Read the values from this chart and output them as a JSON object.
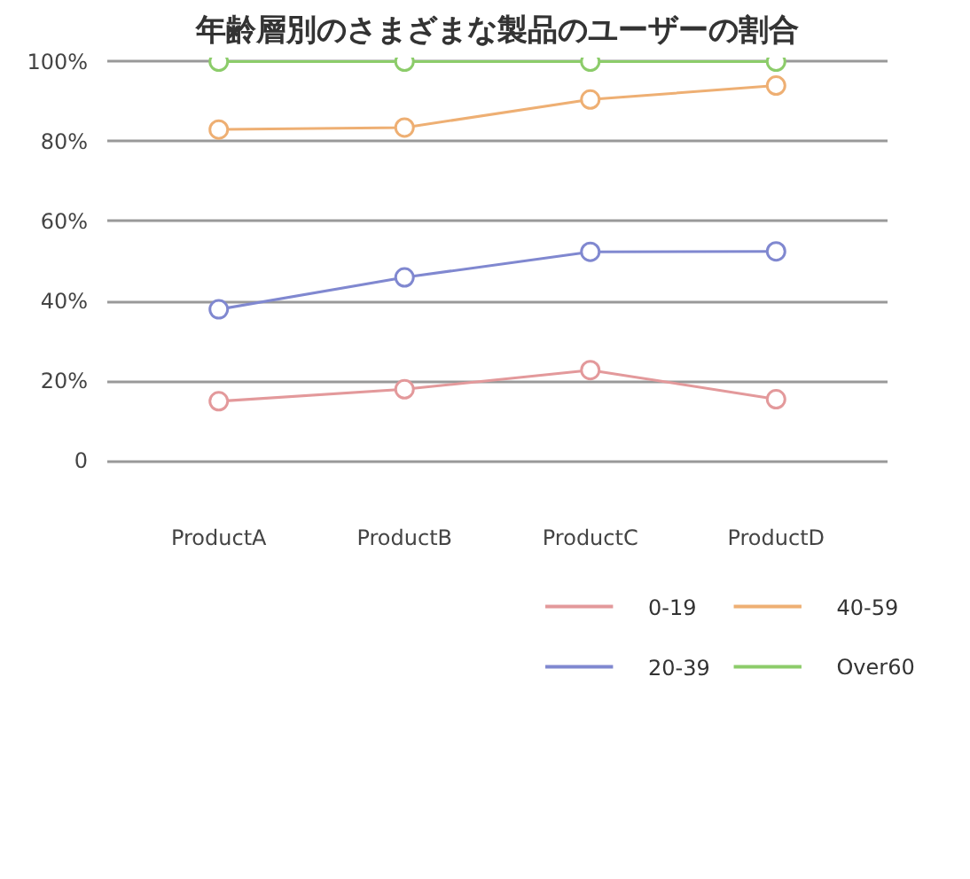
{
  "chart_data": {
    "type": "line",
    "title": "年齢層別のさまざまな製品のユーザーの割合",
    "categories": [
      "ProductA",
      "ProductB",
      "ProductC",
      "ProductD"
    ],
    "series": [
      {
        "name": "0-19",
        "color": "#e3999b",
        "values": [
          15,
          18,
          22.8,
          15.5
        ]
      },
      {
        "name": "20-39",
        "color": "#8088d0",
        "values": [
          38,
          46,
          52.4,
          52.5
        ]
      },
      {
        "name": "40-59",
        "color": "#eeaf73",
        "values": [
          83,
          83.5,
          90.5,
          94
        ]
      },
      {
        "name": "Over60",
        "color": "#8ccc6a",
        "values": [
          100,
          100,
          100,
          100
        ]
      }
    ],
    "ylim": [
      0,
      100
    ],
    "yticks": [
      0,
      {
        "value": 20,
        "label": "20%"
      },
      {
        "value": 40,
        "label": "40%"
      },
      {
        "value": 60,
        "label": "60%"
      },
      {
        "value": 80,
        "label": "80%"
      },
      {
        "value": 100,
        "label": "100%"
      }
    ],
    "grid": "y",
    "legend": "bottom right",
    "marker": "circle",
    "line_style": "solid"
  }
}
